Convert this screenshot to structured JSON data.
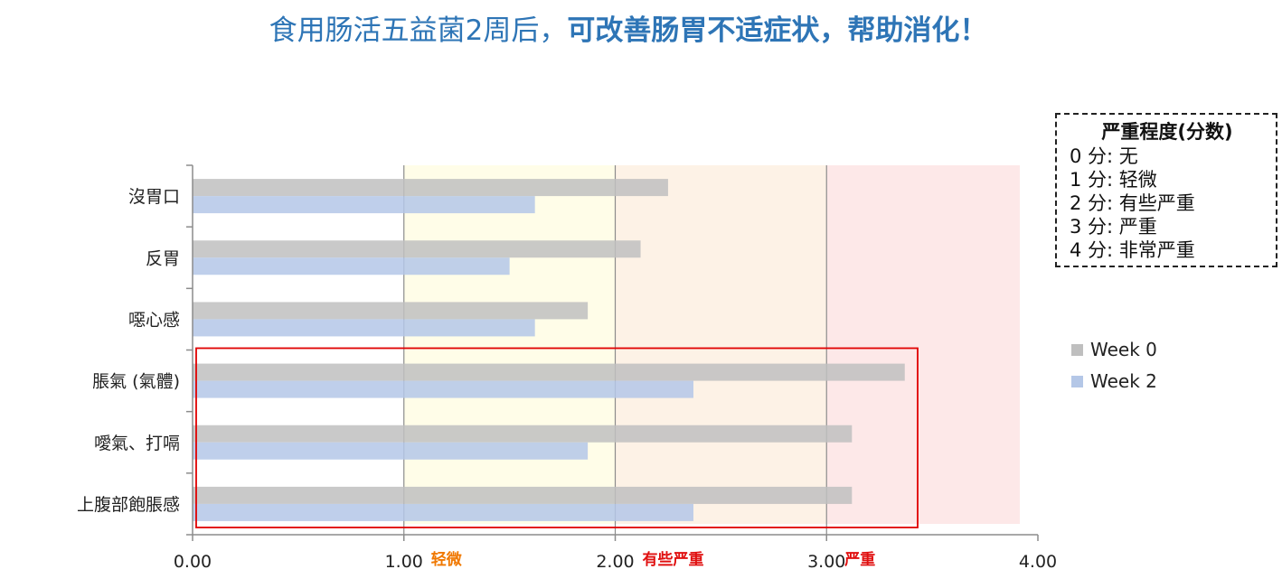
{
  "title": {
    "normal": "食用肠活五益菌2周后，",
    "bold": "可改善肠胃不适症状，帮助消化！"
  },
  "severity_legend": {
    "title": "严重程度(分数)",
    "items": [
      "0 分:  无",
      "1 分:  轻微",
      "2 分:  有些严重",
      "3 分:  严重",
      "4 分:  非常严重"
    ]
  },
  "chart_data": {
    "type": "bar",
    "orientation": "horizontal",
    "categories": [
      "沒胃口",
      "反胃",
      "噁心感",
      "脹氣 (氣體)",
      "噯氣、打嗝",
      "上腹部飽脹感"
    ],
    "series": [
      {
        "name": "Week 0",
        "values": [
          2.25,
          2.12,
          1.87,
          3.37,
          3.12,
          3.12
        ],
        "color": "#bfbfbf"
      },
      {
        "name": "Week 2",
        "values": [
          1.62,
          1.5,
          1.62,
          2.37,
          1.87,
          2.37
        ],
        "color": "#b4c7e7"
      }
    ],
    "xlim": [
      0,
      4
    ],
    "x_ticks": [
      "0.00",
      "1.00",
      "2.00",
      "3.00",
      "4.00"
    ],
    "zones": [
      {
        "from": 1,
        "to": 2,
        "label": "轻微",
        "fill": "#fffde8",
        "label_color": "#f07800"
      },
      {
        "from": 2,
        "to": 3,
        "label": "有些严重",
        "fill": "#fdf2e6",
        "label_color": "#e01010"
      },
      {
        "from": 3,
        "to": 4,
        "label": "严重",
        "fill": "#fde8e8",
        "label_color": "#e01010"
      }
    ],
    "highlight_categories": [
      "脹氣 (氣體)",
      "噯氣、打嗝",
      "上腹部飽脹感"
    ],
    "highlight_color": "#e00000",
    "gridlines": true,
    "legend_position": "right"
  }
}
